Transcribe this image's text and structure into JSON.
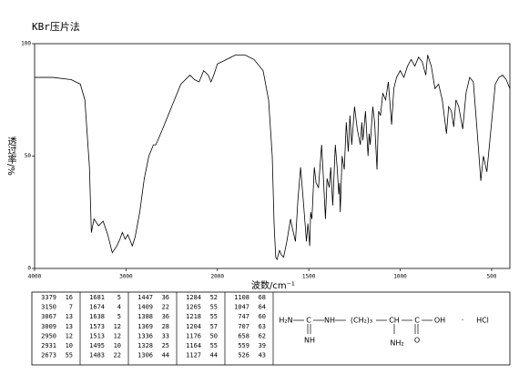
{
  "chart_data": {
    "type": "line",
    "title": "KBr压片法",
    "x_label": "波数/cm⁻¹",
    "y_label": "透过率/%",
    "xlim": [
      4000,
      400
    ],
    "x_scale_break": 2000,
    "ylim": [
      0,
      100
    ],
    "xticks": [
      4000,
      3000,
      2000,
      1500,
      1000,
      500
    ],
    "yticks": [
      0,
      50,
      100
    ],
    "color": "#000000",
    "x": [
      4000,
      3800,
      3600,
      3500,
      3450,
      3400,
      3379,
      3350,
      3300,
      3250,
      3200,
      3150,
      3100,
      3067,
      3040,
      3009,
      2980,
      2950,
      2931,
      2900,
      2850,
      2800,
      2750,
      2700,
      2673,
      2600,
      2500,
      2400,
      2300,
      2250,
      2200,
      2150,
      2100,
      2070,
      2040,
      2000,
      1900,
      1850,
      1800,
      1750,
      1720,
      1700,
      1690,
      1681,
      1674,
      1660,
      1650,
      1638,
      1620,
      1600,
      1590,
      1573,
      1560,
      1545,
      1530,
      1513,
      1505,
      1495,
      1490,
      1483,
      1470,
      1460,
      1447,
      1430,
      1420,
      1409,
      1400,
      1388,
      1380,
      1369,
      1355,
      1345,
      1336,
      1332,
      1328,
      1318,
      1306,
      1295,
      1284,
      1275,
      1265,
      1250,
      1235,
      1218,
      1210,
      1204,
      1190,
      1176,
      1170,
      1164,
      1150,
      1140,
      1127,
      1118,
      1108,
      1095,
      1080,
      1065,
      1047,
      1035,
      1020,
      1000,
      980,
      960,
      940,
      920,
      900,
      880,
      860,
      850,
      830,
      810,
      790,
      770,
      747,
      735,
      720,
      707,
      695,
      680,
      658,
      640,
      620,
      600,
      580,
      559,
      545,
      526,
      500,
      480,
      460,
      440,
      420,
      400
    ],
    "values": [
      85,
      85,
      84,
      82,
      75,
      45,
      16,
      22,
      19,
      21,
      15,
      7,
      10,
      13,
      16,
      13,
      15,
      12,
      10,
      14,
      25,
      40,
      50,
      55,
      55,
      62,
      72,
      82,
      86,
      84,
      83,
      88,
      86,
      83,
      86,
      91,
      95,
      95,
      93,
      88,
      75,
      50,
      20,
      5,
      4,
      8,
      6,
      5,
      12,
      22,
      18,
      12,
      30,
      45,
      30,
      12,
      20,
      10,
      25,
      22,
      45,
      38,
      36,
      55,
      40,
      22,
      40,
      36,
      45,
      28,
      55,
      45,
      33,
      38,
      25,
      50,
      44,
      65,
      52,
      68,
      55,
      72,
      62,
      55,
      65,
      57,
      70,
      50,
      60,
      55,
      72,
      65,
      44,
      70,
      68,
      78,
      75,
      83,
      64,
      80,
      85,
      88,
      85,
      90,
      93,
      90,
      94,
      92,
      86,
      95,
      90,
      80,
      82,
      75,
      60,
      72,
      70,
      63,
      75,
      72,
      62,
      78,
      85,
      83,
      62,
      39,
      50,
      43,
      65,
      82,
      85,
      86,
      84,
      80
    ]
  },
  "peak_table": {
    "columns": [
      {
        "wavenumber": [
          3379,
          3150,
          3067,
          3009,
          2950,
          2931,
          2673
        ],
        "transmittance": [
          16,
          7,
          13,
          13,
          12,
          10,
          55
        ]
      },
      {
        "wavenumber": [
          1681,
          1674,
          1638,
          1573,
          1513,
          1495,
          1483
        ],
        "transmittance": [
          5,
          4,
          5,
          12,
          12,
          10,
          22
        ]
      },
      {
        "wavenumber": [
          1447,
          1409,
          1388,
          1369,
          1336,
          1328,
          1306
        ],
        "transmittance": [
          36,
          22,
          36,
          28,
          33,
          25,
          44
        ]
      },
      {
        "wavenumber": [
          1284,
          1265,
          1218,
          1204,
          1176,
          1164,
          1127
        ],
        "transmittance": [
          52,
          55,
          55,
          57,
          50,
          55,
          44
        ]
      },
      {
        "wavenumber": [
          1108,
          1047,
          747,
          707,
          658,
          559,
          526
        ],
        "transmittance": [
          68,
          64,
          60,
          63,
          62,
          39,
          43
        ]
      }
    ]
  },
  "structure": {
    "parts": [
      "H₂N",
      "C",
      "NH",
      "NH",
      "(CH₂)₃",
      "CH",
      "C",
      "OH",
      "·",
      "HCl",
      "NH",
      "NH₂",
      "O"
    ]
  }
}
